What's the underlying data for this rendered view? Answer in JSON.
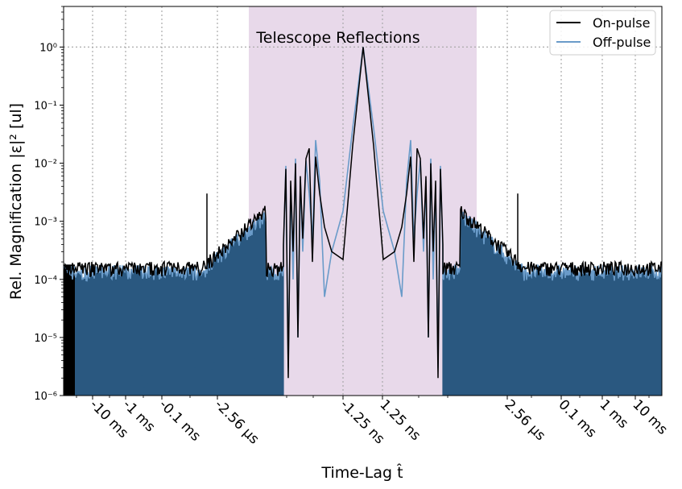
{
  "chart_data": {
    "type": "line",
    "title": "",
    "xlabel": "Time-Lag t̂",
    "ylabel": "Rel. Magnification  |ε|² [ul]",
    "y_scale": "log",
    "ylim": [
      1e-06,
      5
    ],
    "y_ticks": [
      {
        "value": 1e-06,
        "label": "10⁻⁶"
      },
      {
        "value": 1e-05,
        "label": "10⁻⁵"
      },
      {
        "value": 0.0001,
        "label": "10⁻⁴"
      },
      {
        "value": 0.001,
        "label": "10⁻³"
      },
      {
        "value": 0.01,
        "label": "10⁻²"
      },
      {
        "value": 0.1,
        "label": "10⁻¹"
      },
      {
        "value": 1,
        "label": "10⁰"
      }
    ],
    "x_scale": "symmetric-log",
    "x_ticks": [
      "-10 ms",
      "-1 ms",
      "-0.1 ms",
      "-2.56 μs",
      "-1.25 ns",
      "1.25 ns",
      "2.56 μs",
      "0.1 ms",
      "1 ms",
      "10 ms"
    ],
    "grid": "dotted, at ticks",
    "shaded_region": {
      "from": "-2.56 μs",
      "to": "2.56 μs",
      "color": "#e8d9ea"
    },
    "annotation": "Telescope Reflections",
    "legend_position": "top-right",
    "series": [
      {
        "name": "On-pulse",
        "color": "#000000",
        "peak": 1.0,
        "floor": 0.00015
      },
      {
        "name": "Off-pulse",
        "color": "#6a9bc9",
        "peak": 1.0,
        "floor": 0.00013
      }
    ]
  },
  "colors": {
    "shade": "#e8d9ea",
    "fill": "#2a5880",
    "on": "#000000",
    "off": "#6a9bc9"
  }
}
